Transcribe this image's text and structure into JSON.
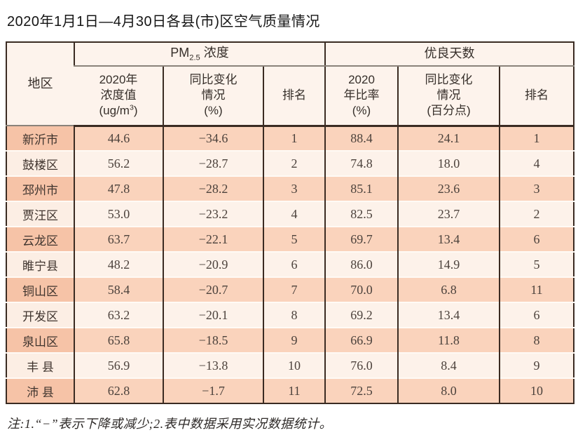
{
  "title": "2020年1月1日—4月30日各县(市)区空气质量情况",
  "note": "注:1.“−”表示下降或减少;2.表中数据采用实况数据统计。",
  "colors": {
    "odd_row": "#fad3bc",
    "odd_row_region": "#f6c3a7",
    "even_row": "#fdf2ea",
    "header_bg": "#fdf3ec",
    "border_dark": "#3a2b22",
    "header_divider_gray": "#8a827a"
  },
  "table": {
    "header": {
      "region": "地区",
      "pm_group": {
        "pre": "PM",
        "sub": "2.5",
        "post": " 浓度"
      },
      "good_group": "优良天数",
      "conc": {
        "l1": "2020年",
        "l2": "浓度值",
        "u_pre": "(ug/m",
        "u_sup": "3",
        "u_post": ")"
      },
      "pm_change": {
        "l1": "同比变化",
        "l2": "情况",
        "l3": "(%)"
      },
      "pm_rank": "排名",
      "ratio": {
        "l1": "2020",
        "l2": "年比率",
        "l3": "(%)"
      },
      "good_change": {
        "l1": "同比变化",
        "l2": "情况",
        "l3": "(百分点)"
      },
      "good_rank": "排名"
    },
    "rows": [
      {
        "region": "新沂市",
        "pm_value": "44.6",
        "pm_change": "−34.6",
        "pm_rank": "1",
        "good_ratio": "88.4",
        "good_change": "24.1",
        "good_rank": "1"
      },
      {
        "region": "鼓楼区",
        "pm_value": "56.2",
        "pm_change": "−28.7",
        "pm_rank": "2",
        "good_ratio": "74.8",
        "good_change": "18.0",
        "good_rank": "4"
      },
      {
        "region": "邳州市",
        "pm_value": "47.8",
        "pm_change": "−28.2",
        "pm_rank": "3",
        "good_ratio": "85.1",
        "good_change": "23.6",
        "good_rank": "3"
      },
      {
        "region": "贾汪区",
        "pm_value": "53.0",
        "pm_change": "−23.2",
        "pm_rank": "4",
        "good_ratio": "82.5",
        "good_change": "23.7",
        "good_rank": "2"
      },
      {
        "region": "云龙区",
        "pm_value": "63.7",
        "pm_change": "−22.1",
        "pm_rank": "5",
        "good_ratio": "69.7",
        "good_change": "13.4",
        "good_rank": "6"
      },
      {
        "region": "睢宁县",
        "pm_value": "48.2",
        "pm_change": "−20.9",
        "pm_rank": "6",
        "good_ratio": "86.0",
        "good_change": "14.9",
        "good_rank": "5"
      },
      {
        "region": "铜山区",
        "pm_value": "58.4",
        "pm_change": "−20.7",
        "pm_rank": "7",
        "good_ratio": "70.0",
        "good_change": "6.8",
        "good_rank": "11"
      },
      {
        "region": "开发区",
        "pm_value": "63.2",
        "pm_change": "−20.1",
        "pm_rank": "8",
        "good_ratio": "69.2",
        "good_change": "13.4",
        "good_rank": "6"
      },
      {
        "region": "泉山区",
        "pm_value": "65.8",
        "pm_change": "−18.5",
        "pm_rank": "9",
        "good_ratio": "66.9",
        "good_change": "11.8",
        "good_rank": "8"
      },
      {
        "region": "丰 县",
        "pm_value": "56.9",
        "pm_change": "−13.8",
        "pm_rank": "10",
        "good_ratio": "76.0",
        "good_change": "8.4",
        "good_rank": "9"
      },
      {
        "region": "沛 县",
        "pm_value": "62.8",
        "pm_change": "−1.7",
        "pm_rank": "11",
        "good_ratio": "72.5",
        "good_change": "8.0",
        "good_rank": "10"
      }
    ]
  }
}
